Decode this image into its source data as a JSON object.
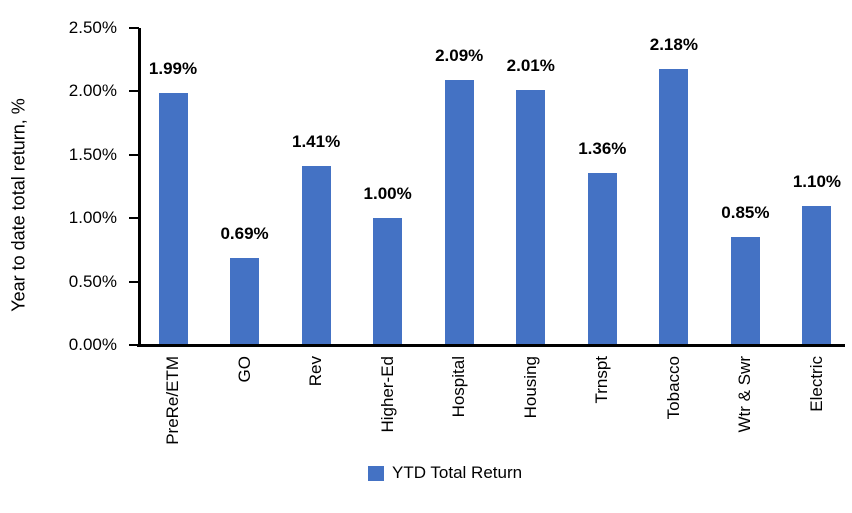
{
  "chart_data": {
    "type": "bar",
    "title": "",
    "xlabel": "",
    "ylabel": "Year to date total return, %",
    "categories": [
      "PreRe/ETM",
      "GO",
      "Rev",
      "Higher-Ed",
      "Hospital",
      "Housing",
      "Trnspt",
      "Tobacco",
      "Wtr & Swr",
      "Electric"
    ],
    "series": [
      {
        "name": "YTD Total Return",
        "values": [
          1.99,
          0.69,
          1.41,
          1.0,
          2.09,
          2.01,
          1.36,
          2.18,
          0.85,
          1.1
        ],
        "color": "#4472C4"
      }
    ],
    "data_labels": [
      "1.99%",
      "0.69%",
      "1.41%",
      "1.00%",
      "2.09%",
      "2.01%",
      "1.36%",
      "2.18%",
      "0.85%",
      "1.10%"
    ],
    "ytick_labels": [
      "0.00%",
      "0.50%",
      "1.00%",
      "1.50%",
      "2.00%",
      "2.50%"
    ],
    "ylim": [
      0,
      2.5
    ],
    "grid": "off",
    "legend_position": "bottom",
    "bar_color": "#4472C4",
    "axis_color": "#000000",
    "text_color": "#000000",
    "background": "#FFFFFF"
  },
  "legend": {
    "label": "YTD Total Return"
  }
}
